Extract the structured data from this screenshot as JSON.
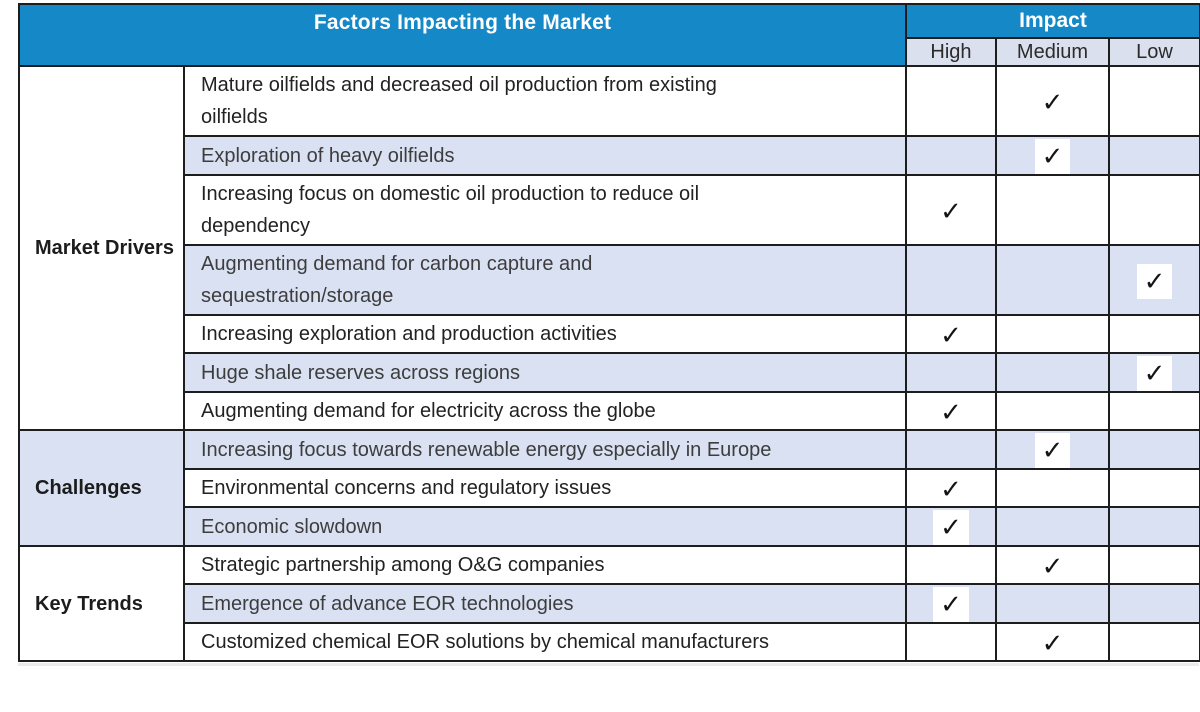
{
  "header": {
    "title": "Factors Impacting the Market",
    "impact_label": "Impact",
    "impact_levels": [
      "High",
      "Medium",
      "Low"
    ]
  },
  "checkmark_glyph": "✓",
  "colors": {
    "header_blue": "#1588c8",
    "row_shade": "#d9e1f2",
    "subheader_bg": "#dbe0ee",
    "border": "#1d1d1d",
    "check": "#151515"
  },
  "groups": [
    {
      "label": "Market Drivers",
      "rows": [
        {
          "factor": "Mature oilfields and decreased oil production from existing\noilfields",
          "impact": "Medium"
        },
        {
          "factor": "Exploration of heavy oilfields",
          "impact": "Medium"
        },
        {
          "factor": "Increasing focus on domestic oil production to reduce oil\ndependency",
          "impact": "High"
        },
        {
          "factor": "Augmenting demand for carbon capture and\nsequestration/storage",
          "impact": "Low"
        },
        {
          "factor": "Increasing exploration and production activities",
          "impact": "High"
        },
        {
          "factor": "Huge shale reserves across regions",
          "impact": "Low"
        },
        {
          "factor": "Augmenting demand for electricity across the globe",
          "impact": "High"
        }
      ]
    },
    {
      "label": "Challenges",
      "rows": [
        {
          "factor": "Increasing focus towards renewable energy especially in Europe",
          "impact": "Medium"
        },
        {
          "factor": "Environmental concerns and regulatory issues",
          "impact": "High"
        },
        {
          "factor": "Economic slowdown",
          "impact": "High"
        }
      ]
    },
    {
      "label": "Key Trends",
      "rows": [
        {
          "factor": "Strategic partnership among O&G companies",
          "impact": "Medium"
        },
        {
          "factor": "Emergence of advance EOR technologies",
          "impact": "High"
        },
        {
          "factor": "Customized chemical EOR solutions by chemical manufacturers",
          "impact": "Medium"
        }
      ]
    }
  ]
}
